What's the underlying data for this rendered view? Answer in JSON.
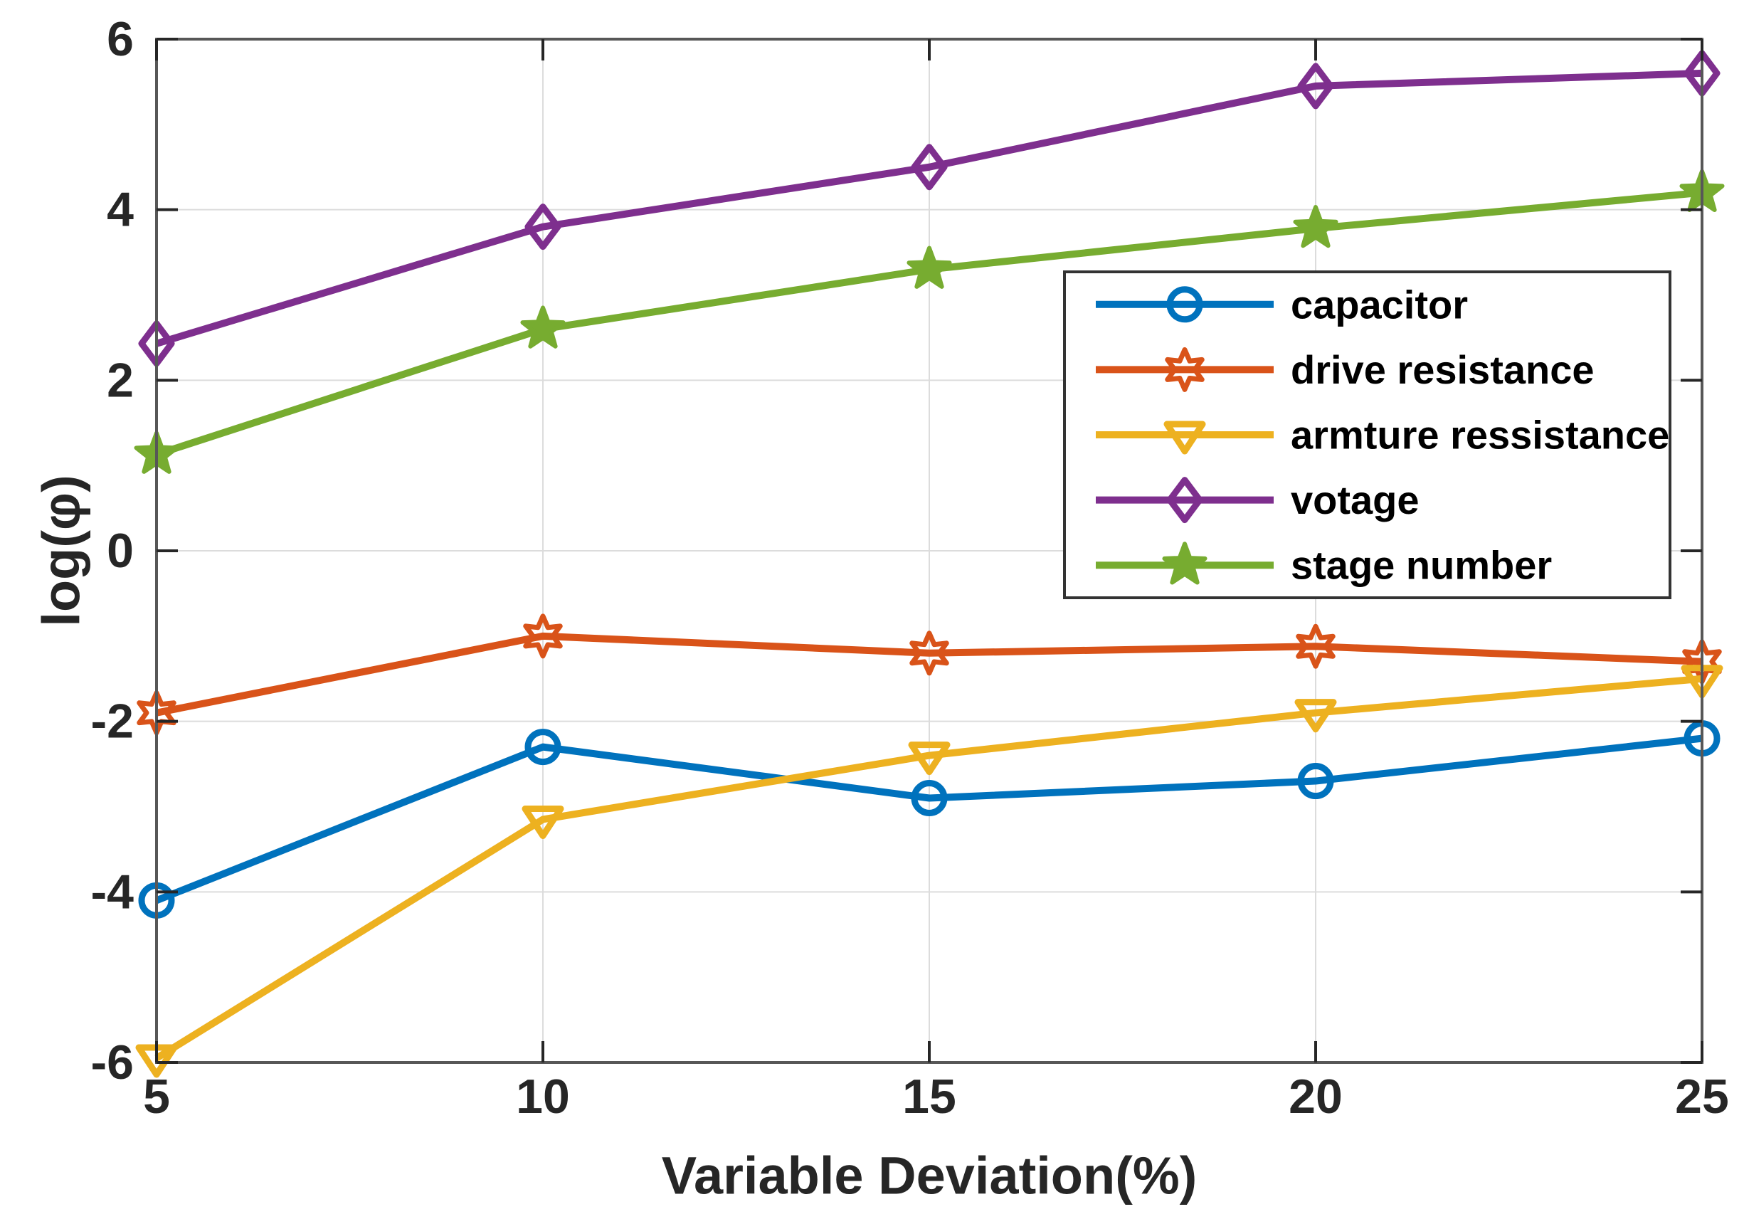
{
  "chart_data": {
    "type": "line",
    "title": "",
    "xlabel": "Variable Deviation(%)",
    "ylabel": "log(φ)",
    "xlim": [
      5,
      25
    ],
    "ylim": [
      -6,
      6
    ],
    "xticks": [
      5,
      10,
      15,
      20,
      25
    ],
    "yticks": [
      -6,
      -4,
      -2,
      0,
      2,
      4,
      6
    ],
    "grid": true,
    "legend_position": "upper-right-inside",
    "x": [
      5,
      10,
      15,
      20,
      25
    ],
    "series": [
      {
        "name": "capacitor",
        "color": "#0072BD",
        "marker": "circle",
        "values": [
          -4.1,
          -2.3,
          -2.9,
          -2.7,
          -2.2
        ]
      },
      {
        "name": "drive resistance",
        "color": "#D95319",
        "marker": "hexagram",
        "values": [
          -1.9,
          -1.0,
          -1.2,
          -1.12,
          -1.3
        ]
      },
      {
        "name": "armture ressistance",
        "color": "#EDB120",
        "marker": "triangle-down",
        "values": [
          -5.95,
          -3.15,
          -2.4,
          -1.9,
          -1.5
        ]
      },
      {
        "name": "votage",
        "color": "#7E2F8E",
        "marker": "diamond",
        "values": [
          2.43,
          3.8,
          4.5,
          5.45,
          5.6
        ]
      },
      {
        "name": "stage number",
        "color": "#77AC30",
        "marker": "pentagram",
        "values": [
          1.13,
          2.6,
          3.3,
          3.78,
          4.2
        ]
      }
    ],
    "colors": {
      "axis": "#262626",
      "box": "#575757",
      "grid": "#dcdcdc",
      "legend_border": "#333333",
      "background": "#ffffff"
    }
  }
}
